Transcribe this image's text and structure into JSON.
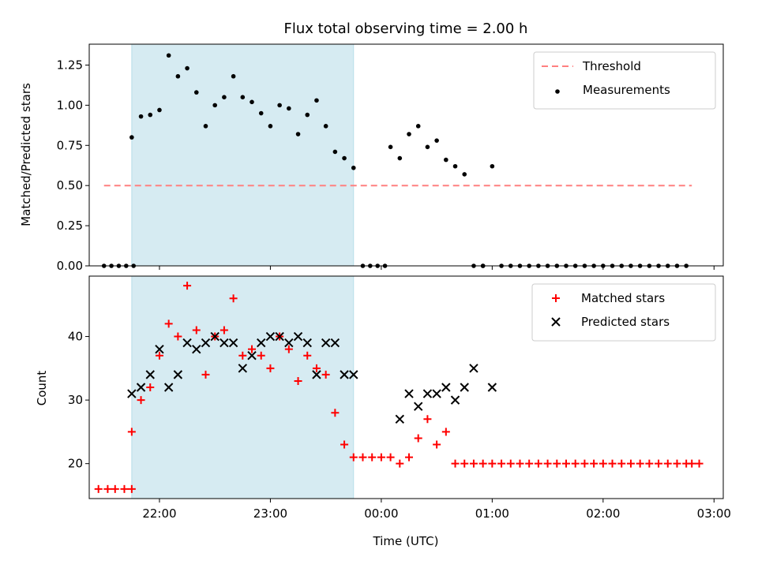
{
  "chart_data": [
    {
      "type": "scatter",
      "title": "Flux total observing time = 2.00 h",
      "xlabel": "",
      "ylabel": "Matched/Predicted stars",
      "xlim": [
        "21:22",
        "03:05"
      ],
      "ylim": [
        0,
        1.38
      ],
      "yticks": [
        0.0,
        0.25,
        0.5,
        0.75,
        1.0,
        1.25
      ],
      "ytick_labels": [
        "0.00",
        "0.25",
        "0.50",
        "0.75",
        "1.00",
        "1.25"
      ],
      "xticks": [
        "22:00",
        "23:00",
        "00:00",
        "01:00",
        "02:00",
        "03:00"
      ],
      "shaded_span": {
        "start": "21:45",
        "end": "23:45",
        "color": "#add8e6"
      },
      "legend_position": "upper right",
      "threshold": {
        "name": "Threshold",
        "value": 0.5,
        "x_range": [
          "21:30",
          "02:48"
        ],
        "color": "#ff8080",
        "style": "dashed"
      },
      "series": [
        {
          "name": "Measurements",
          "color": "#000000",
          "marker": "dot",
          "x": [
            "21:30",
            "21:34",
            "21:38",
            "21:42",
            "21:46",
            "21:45",
            "21:50",
            "21:55",
            "22:00",
            "22:05",
            "22:10",
            "22:15",
            "22:20",
            "22:25",
            "22:30",
            "22:35",
            "22:40",
            "22:45",
            "22:50",
            "22:55",
            "23:00",
            "23:05",
            "23:10",
            "23:15",
            "23:20",
            "23:25",
            "23:30",
            "23:35",
            "23:40",
            "23:45",
            "23:50",
            "23:54",
            "23:58",
            "00:02",
            "00:05",
            "00:10",
            "00:15",
            "00:20",
            "00:25",
            "00:30",
            "00:35",
            "00:40",
            "00:45",
            "00:50",
            "00:55",
            "01:00",
            "00:55",
            "01:05",
            "01:10",
            "01:15",
            "01:20",
            "01:25",
            "01:30",
            "01:35",
            "01:40",
            "01:45",
            "01:50",
            "01:55",
            "02:00",
            "02:05",
            "02:10",
            "02:15",
            "02:20",
            "02:25",
            "02:30",
            "02:35",
            "02:40",
            "02:45"
          ],
          "y": [
            0,
            0,
            0,
            0,
            0,
            0.8,
            0.93,
            0.94,
            0.97,
            1.31,
            1.18,
            1.23,
            1.08,
            0.87,
            1.0,
            1.05,
            1.18,
            1.05,
            1.02,
            0.95,
            0.87,
            1.0,
            0.98,
            0.82,
            0.94,
            1.03,
            0.87,
            0.71,
            0.67,
            0.61,
            0,
            0,
            0,
            0,
            0.74,
            0.67,
            0.82,
            0.87,
            0.74,
            0.78,
            0.66,
            0.62,
            0.57,
            0,
            0,
            0.62,
            0,
            0,
            0,
            0,
            0,
            0,
            0,
            0,
            0,
            0,
            0,
            0,
            0,
            0,
            0,
            0,
            0,
            0,
            0,
            0,
            0,
            0
          ]
        }
      ]
    },
    {
      "type": "scatter",
      "title": "",
      "xlabel": "Time (UTC)",
      "ylabel": "Count",
      "xlim": [
        "21:22",
        "03:05"
      ],
      "ylim": [
        14.5,
        49.5
      ],
      "yticks": [
        20,
        30,
        40
      ],
      "ytick_labels": [
        "20",
        "30",
        "40"
      ],
      "xticks": [
        "22:00",
        "23:00",
        "00:00",
        "01:00",
        "02:00",
        "03:00"
      ],
      "xtick_labels": [
        "22:00",
        "23:00",
        "00:00",
        "01:00",
        "02:00",
        "03:00"
      ],
      "shaded_span": {
        "start": "21:45",
        "end": "23:45",
        "color": "#add8e6"
      },
      "legend_position": "upper right",
      "series": [
        {
          "name": "Matched stars",
          "color": "#ff0000",
          "marker": "plus",
          "x": [
            "21:27",
            "21:32",
            "21:36",
            "21:41",
            "21:45",
            "21:45",
            "21:50",
            "21:55",
            "22:00",
            "22:05",
            "22:10",
            "22:15",
            "22:20",
            "22:25",
            "22:30",
            "22:35",
            "22:40",
            "22:45",
            "22:50",
            "22:55",
            "23:00",
            "23:05",
            "23:10",
            "23:15",
            "23:20",
            "23:25",
            "23:30",
            "23:35",
            "23:40",
            "23:45",
            "23:50",
            "23:55",
            "00:00",
            "00:05",
            "00:10",
            "00:15",
            "00:20",
            "00:25",
            "00:30",
            "00:35",
            "00:40",
            "00:45",
            "00:50",
            "00:55",
            "01:00",
            "01:05",
            "01:10",
            "01:15",
            "01:20",
            "01:25",
            "01:30",
            "01:35",
            "01:40",
            "01:45",
            "01:50",
            "01:55",
            "02:00",
            "02:05",
            "02:10",
            "02:15",
            "02:20",
            "02:25",
            "02:30",
            "02:35",
            "02:40",
            "02:45",
            "02:48",
            "02:52"
          ],
          "y": [
            16,
            16,
            16,
            16,
            16,
            25,
            30,
            32,
            37,
            42,
            40,
            48,
            41,
            34,
            40,
            41,
            46,
            37,
            38,
            37,
            35,
            40,
            38,
            33,
            37,
            35,
            34,
            28,
            23,
            21,
            21,
            21,
            21,
            21,
            20,
            21,
            24,
            27,
            23,
            25,
            20,
            20,
            20,
            20,
            20,
            20,
            20,
            20,
            20,
            20,
            20,
            20,
            20,
            20,
            20,
            20,
            20,
            20,
            20,
            20,
            20,
            20,
            20,
            20,
            20,
            20,
            20,
            20
          ]
        },
        {
          "name": "Predicted stars",
          "color": "#000000",
          "marker": "x",
          "x": [
            "21:45",
            "21:50",
            "21:55",
            "22:00",
            "22:05",
            "22:10",
            "22:15",
            "22:20",
            "22:25",
            "22:30",
            "22:35",
            "22:40",
            "22:45",
            "22:50",
            "22:55",
            "23:00",
            "23:05",
            "23:10",
            "23:15",
            "23:20",
            "23:25",
            "23:30",
            "23:35",
            "23:40",
            "23:45",
            "00:10",
            "00:15",
            "00:20",
            "00:25",
            "00:30",
            "00:35",
            "00:40",
            "00:45",
            "00:50",
            "01:00"
          ],
          "y": [
            31,
            32,
            34,
            38,
            32,
            34,
            39,
            38,
            39,
            40,
            39,
            39,
            35,
            37,
            39,
            40,
            40,
            39,
            40,
            39,
            34,
            39,
            39,
            34,
            34,
            27,
            31,
            29,
            31,
            31,
            32,
            30,
            32,
            35,
            32
          ]
        }
      ]
    }
  ]
}
